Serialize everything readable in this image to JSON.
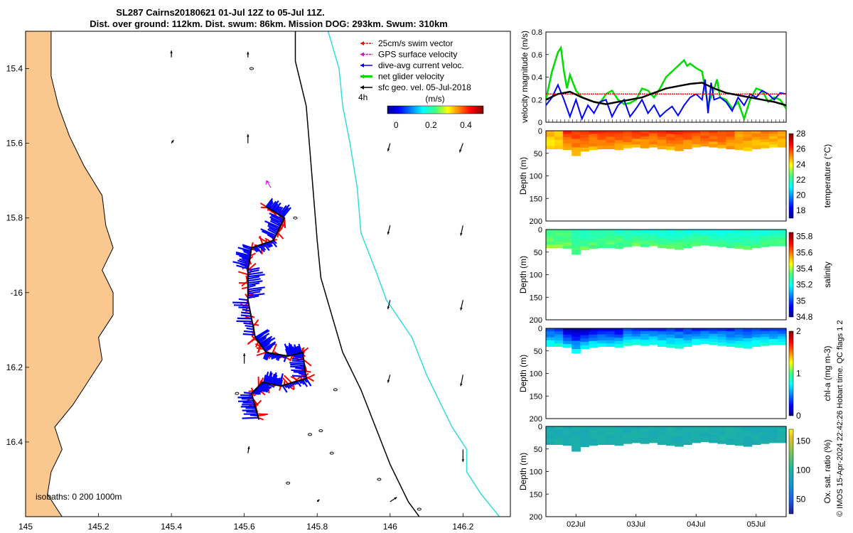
{
  "header": {
    "line1": "SL287 Cairns20180621 01-Jul 12Z to 05-Jul 11Z.",
    "line2": "Dist. over ground: 112km. Dist. swum: 86km. Mission DOG: 293km. Swum: 310km"
  },
  "footer_stamp": "© IMOS 15-Apr-2024 22:42:26 Hobart time. QC flags 1  2",
  "colors": {
    "land": "#FAC88F",
    "swim": "#FF0000",
    "gps": "#E000E0",
    "current": "#0000FF",
    "net": "#00DD00",
    "geo": "#000000",
    "iso200": "#000000",
    "iso1000": "#33DDDD"
  },
  "chart_data": [
    {
      "id": "map",
      "type": "scatter",
      "title": "",
      "xlabel": "",
      "ylabel": "",
      "xlim": [
        145,
        146.33
      ],
      "ylim": [
        -16.6,
        -15.3
      ],
      "xticks": [
        145,
        145.2,
        145.4,
        145.6,
        145.8,
        146,
        146.2
      ],
      "xtick_labels": [
        "145",
        "145.2",
        "145.4",
        "145.6",
        "145.8",
        "146",
        "146.2"
      ],
      "yticks": [
        -15.4,
        -15.6,
        -15.8,
        -16,
        -16.2,
        -16.4
      ],
      "ytick_labels": [
        "15.4",
        "15.6",
        "15.8",
        "-16",
        "16.2",
        "16.4"
      ],
      "legend": {
        "placement": "top-right",
        "items": [
          "25cm/s swim vector",
          "GPS surface velocity",
          "dive-avg current veloc.",
          "net glider velocity",
          "sfc geo. vel. 05-Jul-2018"
        ],
        "interval_label": "4h"
      },
      "colorbar": {
        "unit": "(m/s)",
        "range": [
          -0.05,
          0.5
        ],
        "ticks": [
          0,
          0.2,
          0.4
        ],
        "tick_labels": [
          "0",
          "0.2",
          "0.4"
        ]
      },
      "isobath_note": "isobaths: 0   200  1000m",
      "coastline": [
        [
          145.0,
          -15.3
        ],
        [
          145.07,
          -15.3
        ],
        [
          145.07,
          -15.36
        ],
        [
          145.07,
          -15.42
        ],
        [
          145.09,
          -15.5
        ],
        [
          145.12,
          -15.58
        ],
        [
          145.16,
          -15.66
        ],
        [
          145.21,
          -15.74
        ],
        [
          145.22,
          -15.82
        ],
        [
          145.24,
          -15.88
        ],
        [
          145.21,
          -15.94
        ],
        [
          145.24,
          -16.0
        ],
        [
          145.24,
          -16.06
        ],
        [
          145.2,
          -16.12
        ],
        [
          145.21,
          -16.18
        ],
        [
          145.17,
          -16.24
        ],
        [
          145.13,
          -16.3
        ],
        [
          145.08,
          -16.36
        ],
        [
          145.1,
          -16.42
        ],
        [
          145.07,
          -16.48
        ],
        [
          145.06,
          -16.54
        ],
        [
          145.1,
          -16.6
        ],
        [
          145.0,
          -16.6
        ]
      ],
      "isobath_200": [
        [
          145.74,
          -15.3
        ],
        [
          145.74,
          -15.38
        ],
        [
          145.77,
          -15.5
        ],
        [
          145.78,
          -15.62
        ],
        [
          145.79,
          -15.74
        ],
        [
          145.8,
          -15.86
        ],
        [
          145.81,
          -15.96
        ],
        [
          145.84,
          -16.06
        ],
        [
          145.87,
          -16.16
        ],
        [
          145.92,
          -16.26
        ],
        [
          145.96,
          -16.36
        ],
        [
          146.0,
          -16.46
        ],
        [
          146.05,
          -16.56
        ],
        [
          146.08,
          -16.6
        ]
      ],
      "isobath_1000": [
        [
          145.83,
          -15.3
        ],
        [
          145.86,
          -15.4
        ],
        [
          145.87,
          -15.5
        ],
        [
          145.89,
          -15.6
        ],
        [
          145.91,
          -15.72
        ],
        [
          145.92,
          -15.84
        ],
        [
          145.96,
          -15.94
        ],
        [
          145.99,
          -16.02
        ],
        [
          146.06,
          -16.12
        ],
        [
          146.1,
          -16.22
        ],
        [
          146.14,
          -16.3
        ],
        [
          146.17,
          -16.36
        ],
        [
          146.21,
          -16.42
        ],
        [
          146.21,
          -16.48
        ],
        [
          146.25,
          -16.54
        ],
        [
          146.3,
          -16.6
        ]
      ],
      "glider_track": [
        [
          145.66,
          -15.77
        ],
        [
          145.71,
          -15.8
        ],
        [
          145.68,
          -15.86
        ],
        [
          145.62,
          -15.88
        ],
        [
          145.61,
          -15.94
        ],
        [
          145.61,
          -16.02
        ],
        [
          145.63,
          -16.12
        ],
        [
          145.66,
          -16.16
        ],
        [
          145.72,
          -16.17
        ],
        [
          145.76,
          -16.16
        ],
        [
          145.77,
          -16.23
        ],
        [
          145.7,
          -16.25
        ],
        [
          145.65,
          -16.24
        ],
        [
          145.62,
          -16.27
        ],
        [
          145.64,
          -16.34
        ]
      ],
      "geo_vectors": [
        [
          145.4,
          -15.37,
          0.0,
          0.3
        ],
        [
          145.61,
          -15.37,
          0.0,
          0.25
        ],
        [
          145.4,
          -15.6,
          0.1,
          0.15
        ],
        [
          145.61,
          -15.6,
          0.0,
          0.4
        ],
        [
          146.0,
          -15.6,
          -0.1,
          -0.35
        ],
        [
          146.2,
          -15.6,
          -0.15,
          -0.4
        ],
        [
          146.0,
          -15.82,
          -0.1,
          -0.4
        ],
        [
          146.2,
          -15.82,
          -0.1,
          -0.45
        ],
        [
          146.0,
          -16.02,
          -0.1,
          -0.4
        ],
        [
          146.2,
          -16.02,
          -0.1,
          -0.45
        ],
        [
          145.6,
          -16.19,
          0.0,
          0.45
        ],
        [
          146.0,
          -16.22,
          -0.1,
          -0.35
        ],
        [
          146.2,
          -16.22,
          -0.1,
          -0.5
        ],
        [
          145.61,
          -16.43,
          0.05,
          0.3
        ],
        [
          146.2,
          -16.42,
          0.0,
          -0.55
        ],
        [
          145.8,
          -16.56,
          0.1,
          0.1
        ],
        [
          146.0,
          -16.56,
          0.3,
          0.2
        ]
      ],
      "label_arrow_example": "4h"
    },
    {
      "id": "velocity",
      "type": "line",
      "ylabel": "velocity magnitude (m/s)",
      "ylim": [
        0,
        0.8
      ],
      "yticks": [
        0,
        0.2,
        0.4,
        0.6,
        0.8
      ],
      "xlim": [
        0,
        4
      ],
      "xticks": [
        0.5,
        1.5,
        2.5,
        3.5
      ],
      "xtick_labels": [
        "02Jul",
        "03Jul",
        "04Jul",
        "05Jul"
      ],
      "series": [
        {
          "name": "net glider velocity",
          "x": [
            0,
            0.1,
            0.2,
            0.25,
            0.3,
            0.35,
            0.4,
            0.5,
            0.6,
            0.7,
            0.8,
            0.9,
            1.0,
            1.1,
            1.2,
            1.3,
            1.4,
            1.5,
            1.6,
            1.7,
            1.8,
            1.9,
            2.0,
            2.1,
            2.2,
            2.3,
            2.35,
            2.4,
            2.5,
            2.6,
            2.7,
            2.8,
            2.85,
            2.9,
            3.0,
            3.1,
            3.2,
            3.3,
            3.4,
            3.5,
            3.6,
            3.7,
            3.8,
            3.9,
            4.0
          ],
          "values": [
            0.2,
            0.45,
            0.62,
            0.66,
            0.45,
            0.3,
            0.42,
            0.28,
            0.22,
            0.2,
            0.18,
            0.17,
            0.25,
            0.28,
            0.2,
            0.16,
            0.17,
            0.2,
            0.3,
            0.28,
            0.22,
            0.3,
            0.4,
            0.45,
            0.5,
            0.55,
            0.5,
            0.52,
            0.48,
            0.45,
            0.15,
            0.3,
            0.38,
            0.22,
            0.2,
            0.12,
            0.18,
            0.03,
            0.2,
            0.3,
            0.28,
            0.18,
            0.22,
            0.2,
            0.12
          ]
        },
        {
          "name": "dive-avg current veloc.",
          "x": [
            0,
            0.1,
            0.2,
            0.3,
            0.4,
            0.5,
            0.6,
            0.7,
            0.8,
            0.9,
            1.0,
            1.1,
            1.2,
            1.3,
            1.4,
            1.5,
            1.6,
            1.7,
            1.8,
            1.9,
            2.0,
            2.1,
            2.2,
            2.3,
            2.4,
            2.5,
            2.6,
            2.65,
            2.7,
            2.75,
            2.8,
            2.9,
            3.0,
            3.1,
            3.2,
            3.3,
            3.4,
            3.5,
            3.6,
            3.7,
            3.8,
            3.9,
            4.0
          ],
          "values": [
            0.15,
            0.22,
            0.33,
            0.2,
            0.05,
            0.2,
            0.03,
            0.15,
            0.08,
            0.18,
            0.2,
            0.05,
            0.15,
            0.2,
            0.05,
            0.12,
            0.2,
            0.08,
            0.15,
            0.05,
            0.1,
            0.14,
            0.06,
            0.15,
            0.22,
            0.25,
            0.2,
            0.38,
            0.08,
            0.35,
            0.2,
            0.22,
            0.18,
            0.1,
            0.22,
            0.15,
            0.25,
            0.22,
            0.28,
            0.25,
            0.2,
            0.26,
            0.25
          ]
        },
        {
          "name": "swim",
          "x": [
            0,
            4
          ],
          "values": [
            0.25,
            0.25
          ]
        },
        {
          "name": "sfc geo. vel.",
          "x": [
            0,
            0.2,
            0.4,
            0.6,
            0.8,
            1.0,
            1.2,
            1.4,
            1.6,
            1.8,
            2.0,
            2.2,
            2.4,
            2.6,
            2.8,
            3.0,
            3.2,
            3.4,
            3.6,
            3.8,
            4.0
          ],
          "values": [
            0.2,
            0.25,
            0.27,
            0.22,
            0.18,
            0.16,
            0.18,
            0.2,
            0.22,
            0.26,
            0.3,
            0.32,
            0.34,
            0.35,
            0.3,
            0.26,
            0.24,
            0.22,
            0.2,
            0.18,
            0.15
          ]
        }
      ]
    },
    {
      "id": "temperature",
      "type": "heatmap",
      "ylabel": "Depth (m)",
      "cblabel": "temperature (°C)",
      "ylim": [
        200,
        0
      ],
      "yticks": [
        0,
        50,
        100,
        150,
        200
      ],
      "clim": [
        17,
        28
      ],
      "cticks": [
        18,
        20,
        22,
        24,
        26,
        28
      ],
      "depth_profile": [
        40,
        40,
        42,
        55,
        45,
        42,
        40,
        40,
        42,
        38,
        36,
        38,
        36,
        40,
        42,
        44,
        40,
        36,
        34,
        36,
        38,
        40,
        42,
        44,
        40,
        38,
        36,
        36
      ],
      "sections": [
        {
          "x0": 0,
          "x1": 0.3,
          "value": 24.6
        },
        {
          "x0": 0.3,
          "x1": 3.1,
          "value": 26.0
        },
        {
          "x0": 3.1,
          "x1": 4.0,
          "value": 25.2
        }
      ],
      "deep_value": 24.0
    },
    {
      "id": "salinity",
      "type": "heatmap",
      "ylabel": "Depth (m)",
      "cblabel": "salinity",
      "ylim": [
        200,
        0
      ],
      "yticks": [
        0,
        50,
        100,
        150,
        200
      ],
      "clim": [
        34.8,
        35.85
      ],
      "cticks": [
        34.8,
        35,
        35.2,
        35.4,
        35.6,
        35.8
      ],
      "cticklabels": [
        "34.8",
        "35",
        "35.2",
        "35.4",
        "35.6",
        "35.8"
      ],
      "depth_profile": [
        40,
        40,
        42,
        55,
        45,
        42,
        40,
        40,
        42,
        38,
        36,
        38,
        36,
        40,
        42,
        44,
        40,
        36,
        34,
        36,
        38,
        40,
        42,
        44,
        40,
        38,
        36,
        36
      ],
      "sections": [
        {
          "x0": 0,
          "x1": 0.5,
          "value": 35.3
        },
        {
          "x0": 0.5,
          "x1": 1.6,
          "value": 35.25
        },
        {
          "x0": 1.6,
          "x1": 4.0,
          "value": 35.22
        }
      ],
      "deep_value": 35.4
    },
    {
      "id": "chla",
      "type": "heatmap",
      "ylabel": "Depth (m)",
      "cblabel": "chl-a (mg m-3)",
      "ylim": [
        200,
        0
      ],
      "yticks": [
        0,
        50,
        100,
        150,
        200
      ],
      "clim": [
        0,
        2
      ],
      "cticks": [
        0,
        1,
        2
      ],
      "depth_profile": [
        40,
        40,
        42,
        55,
        45,
        42,
        40,
        40,
        42,
        38,
        36,
        38,
        36,
        40,
        42,
        44,
        40,
        36,
        34,
        36,
        38,
        40,
        42,
        44,
        40,
        38,
        36,
        36
      ],
      "sections": [
        {
          "x0": 0,
          "x1": 0.3,
          "value": 0.35
        },
        {
          "x0": 0.3,
          "x1": 0.7,
          "value": 0.1
        },
        {
          "x0": 0.7,
          "x1": 1.3,
          "value": 0.2
        },
        {
          "x0": 1.3,
          "x1": 4.0,
          "value": 0.35
        }
      ],
      "deep_value": 1.1
    },
    {
      "id": "oxygen",
      "type": "heatmap",
      "ylabel": "Depth (m)",
      "cblabel": "Ox. sat. ratio (%)",
      "ylim": [
        200,
        0
      ],
      "yticks": [
        0,
        50,
        100,
        150,
        200
      ],
      "clim": [
        25,
        170
      ],
      "cticks": [
        50,
        100,
        150
      ],
      "depth_profile": [
        40,
        40,
        42,
        55,
        45,
        42,
        40,
        40,
        42,
        38,
        36,
        38,
        36,
        40,
        42,
        44,
        40,
        36,
        34,
        36,
        38,
        40,
        42,
        44,
        40,
        38,
        36,
        36
      ],
      "sections": [
        {
          "x0": 0,
          "x1": 4.0,
          "value": 95
        }
      ],
      "deep_value": 95
    }
  ]
}
